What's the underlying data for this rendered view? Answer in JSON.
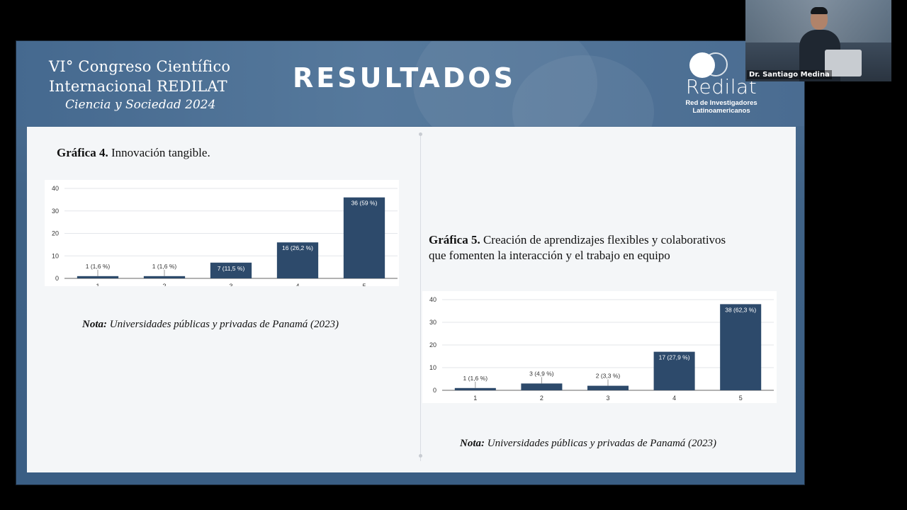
{
  "slide": {
    "congress_line1": "VI° Congreso Científico",
    "congress_line2": "Internacional REDILAT",
    "congress_line3": "Ciencia y Sociedad 2024",
    "heading": "RESULTADOS",
    "logo_icon": "globe-icon",
    "logo_brand": "Redilat",
    "logo_tag_line1": "Red de Investigadores",
    "logo_tag_line2": "Latinoamericanos"
  },
  "chart4": {
    "label": "Gráfica 4.",
    "title": " Innovación tangible.",
    "note_label": "Nota:",
    "note_text": " Universidades públicas y privadas de Panamá (2023)"
  },
  "chart5": {
    "label": "Gráfica 5.",
    "title_line1": " Creación de aprendizajes flexibles y colaborativos",
    "title_line2": "que fomenten la interacción y el trabajo en equipo",
    "note_label": "Nota:",
    "note_text": " Universidades públicas y privadas de Panamá (2023)"
  },
  "chart_data": [
    {
      "type": "bar",
      "categories": [
        "1",
        "2",
        "3",
        "4",
        "5"
      ],
      "values": [
        1,
        1,
        7,
        16,
        36
      ],
      "data_labels": [
        "1 (1,6 %)",
        "1 (1,6 %)",
        "7 (11,5 %)",
        "16 (26,2 %)",
        "36 (59 %)"
      ],
      "yticks": [
        "0",
        "10",
        "20",
        "30",
        "40"
      ],
      "ylim": [
        0,
        40
      ],
      "grid": true,
      "bar_color": "#2d4a6b"
    },
    {
      "type": "bar",
      "categories": [
        "1",
        "2",
        "3",
        "4",
        "5"
      ],
      "values": [
        1,
        3,
        2,
        17,
        38
      ],
      "data_labels": [
        "1 (1,6 %)",
        "3 (4,9 %)",
        "2 (3,3 %)",
        "17 (27,9 %)",
        "38 (62,3 %)"
      ],
      "yticks": [
        "0",
        "10",
        "20",
        "30",
        "40"
      ],
      "ylim": [
        0,
        40
      ],
      "grid": true,
      "bar_color": "#2d4a6b"
    }
  ],
  "webcam": {
    "name": "Dr. Santiago Medina"
  }
}
